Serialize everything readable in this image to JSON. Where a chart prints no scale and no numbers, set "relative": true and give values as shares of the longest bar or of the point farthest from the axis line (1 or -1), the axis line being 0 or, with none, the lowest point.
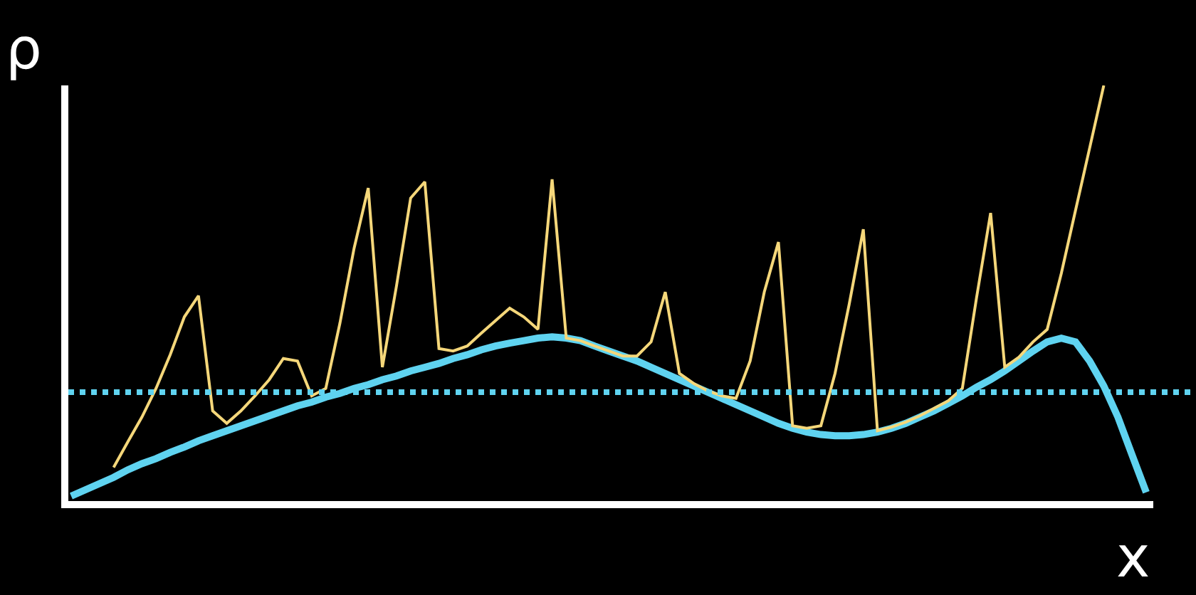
{
  "chart_data": {
    "type": "line",
    "relative": true,
    "xlabel": "x",
    "ylabel": "ρ",
    "categories": [
      null,
      null,
      null,
      null,
      null,
      null,
      null,
      null,
      null,
      null,
      null,
      null,
      null,
      null,
      null,
      null,
      null,
      null,
      null,
      null,
      null,
      null,
      null,
      null,
      null,
      null,
      null,
      null,
      null,
      null,
      null,
      null,
      null,
      null,
      null,
      null,
      null,
      null,
      null,
      null,
      null,
      null,
      null,
      null,
      null,
      null,
      null,
      null,
      null,
      null,
      null,
      null,
      null,
      null,
      null,
      null,
      null,
      null,
      null,
      null,
      null,
      null,
      null,
      null,
      null,
      null,
      null,
      null,
      null,
      null,
      null,
      null,
      null,
      null,
      null,
      null,
      null
    ],
    "series": [
      {
        "color": "#f5d77a",
        "values": [
          null,
          null,
          null,
          0.081,
          0.142,
          0.202,
          0.271,
          0.352,
          0.443,
          0.494,
          0.217,
          0.187,
          0.217,
          0.253,
          0.292,
          0.343,
          0.337,
          0.253,
          0.271,
          0.428,
          0.608,
          0.753,
          0.322,
          0.518,
          0.729,
          0.768,
          0.367,
          0.361,
          0.373,
          0.404,
          0.434,
          0.464,
          0.443,
          0.413,
          0.774,
          0.392,
          0.386,
          0.373,
          0.361,
          0.349,
          0.349,
          0.383,
          0.503,
          0.307,
          0.283,
          0.265,
          0.253,
          0.247,
          0.337,
          0.503,
          0.623,
          0.181,
          0.175,
          0.181,
          0.307,
          0.473,
          0.654,
          0.169,
          0.178,
          0.19,
          0.205,
          0.223,
          0.241,
          0.271,
          0.488,
          0.693,
          0.322,
          0.346,
          0.383,
          0.413,
          0.548,
          0.699,
          0.849,
          1.0,
          null,
          null,
          null
        ]
      },
      {
        "color": "#5fd3f0",
        "values": [
          0.012,
          0.027,
          0.042,
          0.057,
          0.075,
          0.09,
          0.102,
          0.117,
          0.13,
          0.145,
          0.157,
          0.169,
          0.181,
          0.193,
          0.205,
          0.217,
          0.229,
          0.238,
          0.25,
          0.259,
          0.271,
          0.28,
          0.292,
          0.301,
          0.313,
          0.322,
          0.331,
          0.343,
          0.352,
          0.364,
          0.373,
          0.38,
          0.386,
          0.392,
          0.395,
          0.392,
          0.386,
          0.373,
          0.361,
          0.349,
          0.337,
          0.322,
          0.307,
          0.292,
          0.277,
          0.262,
          0.247,
          0.232,
          0.217,
          0.202,
          0.187,
          0.175,
          0.166,
          0.16,
          0.157,
          0.157,
          0.16,
          0.166,
          0.175,
          0.187,
          0.202,
          0.217,
          0.235,
          0.253,
          0.274,
          0.292,
          0.313,
          0.337,
          0.361,
          0.383,
          0.392,
          0.383,
          0.337,
          0.277,
          0.202,
          0.111,
          0.021
        ]
      }
    ],
    "ref_lines": [
      {
        "axis": "y",
        "value": 0.262,
        "color": "#5fd3f0",
        "line_style": "dotted"
      }
    ],
    "marker": "none"
  }
}
